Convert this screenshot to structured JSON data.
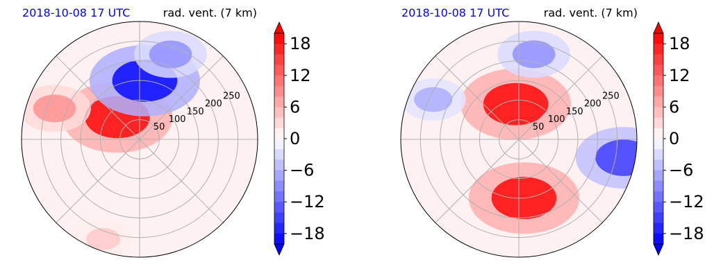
{
  "colors": {
    "date_text": "#0000ff",
    "negative_max": "#0000ff",
    "positive_max": "#ff0000",
    "neutral": "#ffffff",
    "grid": "#b0b0b0"
  },
  "chart_data": [
    {
      "type": "heatmap",
      "projection": "polar",
      "title_left": "2018-10-08 17 UTC",
      "title_right": "rad. vent. (7 km)",
      "radial_ticks": [
        "50",
        "100",
        "150",
        "200",
        "250"
      ],
      "radial_tick_values": [
        50,
        100,
        150,
        200,
        250
      ],
      "r_max": 300,
      "angular_gridlines_deg": [
        0,
        45,
        90,
        135,
        180,
        225,
        270,
        315
      ],
      "grid": true,
      "colorbar": {
        "cmap": "bwr",
        "vmin": -20,
        "vmax": 20,
        "levels_step": 2,
        "extend": "both",
        "ticks": [
          18,
          12,
          6,
          0,
          -6,
          -12,
          -18
        ],
        "tick_labels": [
          "18",
          "12",
          "6",
          "0",
          "−6",
          "−12",
          "−18"
        ]
      },
      "features": [
        {
          "desc": "strong positive",
          "azimuth_deg": 315,
          "range": 80,
          "value": 18
        },
        {
          "desc": "positive band",
          "azimuth_deg": 290,
          "range": 230,
          "value": 8
        },
        {
          "desc": "strong negative",
          "azimuth_deg": 5,
          "range": 150,
          "value": -18
        },
        {
          "desc": "negative",
          "azimuth_deg": 20,
          "range": 230,
          "value": -8
        },
        {
          "desc": "weak positive",
          "azimuth_deg": 200,
          "range": 270,
          "value": 4
        }
      ]
    },
    {
      "type": "heatmap",
      "projection": "polar",
      "title_left": "2018-10-08 17 UTC",
      "title_right": "rad. vent. (7 km)",
      "radial_ticks": [
        "50",
        "100",
        "150",
        "200",
        "250"
      ],
      "radial_tick_values": [
        50,
        100,
        150,
        200,
        250
      ],
      "r_max": 300,
      "angular_gridlines_deg": [
        0,
        45,
        90,
        135,
        180,
        225,
        270,
        315
      ],
      "grid": true,
      "colorbar": {
        "cmap": "bwr",
        "vmin": -20,
        "vmax": 20,
        "levels_step": 2,
        "extend": "both",
        "ticks": [
          18,
          12,
          6,
          0,
          -6,
          -12,
          -18
        ],
        "tick_labels": [
          "18",
          "12",
          "6",
          "0",
          "−6",
          "−12",
          "−18"
        ]
      },
      "features": [
        {
          "desc": "strong positive",
          "azimuth_deg": 175,
          "range": 150,
          "value": 18
        },
        {
          "desc": "positive core",
          "azimuth_deg": 355,
          "range": 90,
          "value": 18
        },
        {
          "desc": "negative",
          "azimuth_deg": 10,
          "range": 220,
          "value": -8
        },
        {
          "desc": "negative",
          "azimuth_deg": 100,
          "range": 270,
          "value": -14
        },
        {
          "desc": "negative",
          "azimuth_deg": 295,
          "range": 240,
          "value": -6
        }
      ]
    }
  ]
}
